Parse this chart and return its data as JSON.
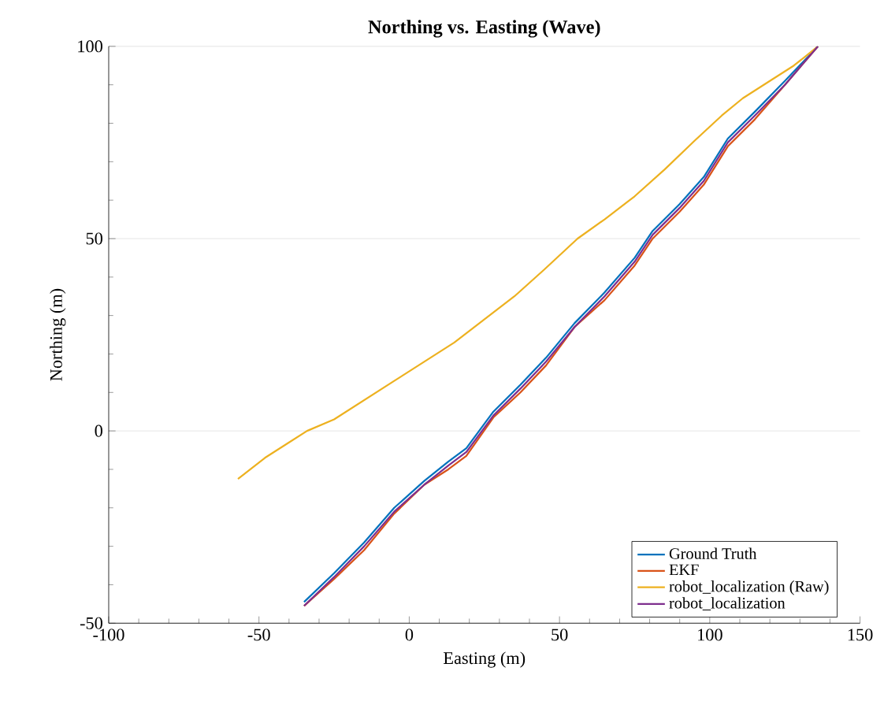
{
  "chart_data": {
    "type": "line",
    "title": "Northing vs. Easting (Wave)",
    "xlabel": "Easting (m)",
    "ylabel": "Northing (m)",
    "xlim": [
      -100,
      150
    ],
    "xticks": [
      -100,
      -50,
      0,
      50,
      100,
      150
    ],
    "ylim": [
      -50,
      100
    ],
    "yticks": [
      -50,
      0,
      50,
      100
    ],
    "grid": "y",
    "legend": "bottom right",
    "line_style": "solid",
    "marker": "none",
    "series": [
      {
        "name": "Ground Truth",
        "color": "#0072bd",
        "x": [
          -35,
          -25,
          -15,
          -5,
          5,
          13,
          19,
          28,
          37,
          45.5,
          55,
          65,
          75,
          81,
          90,
          98,
          106,
          115,
          125,
          136
        ],
        "values": [
          -44.5,
          -37,
          -29,
          -20,
          -13,
          -8,
          -4.5,
          5,
          12,
          19,
          28,
          36,
          45,
          52,
          59,
          66,
          76,
          83,
          91,
          100
        ]
      },
      {
        "name": "EKF",
        "color": "#d95319",
        "x": [
          -35,
          -25,
          -15,
          -5,
          5,
          13,
          19,
          28,
          37,
          45.5,
          55,
          65,
          75,
          81,
          90,
          98,
          106,
          115,
          125,
          136
        ],
        "values": [
          -45.5,
          -38.5,
          -31,
          -21.5,
          -14,
          -10,
          -6.5,
          3.5,
          10,
          17,
          27,
          34,
          43,
          50,
          57,
          64,
          74,
          81,
          90,
          100
        ]
      },
      {
        "name": "robot_localization (Raw)",
        "color": "#edb120",
        "x": [
          -57,
          -48,
          -40,
          -34,
          -25,
          -15,
          -5,
          7,
          15,
          25,
          35,
          45,
          56,
          65,
          75,
          85,
          95,
          104,
          111,
          120,
          128,
          136
        ],
        "values": [
          -12.5,
          -7,
          -3,
          0,
          3,
          8,
          13,
          19,
          23,
          29,
          35,
          42,
          50,
          55,
          61,
          68,
          75.5,
          82,
          86.5,
          91,
          95,
          100
        ]
      },
      {
        "name": "robot_localization",
        "color": "#7e2f8e",
        "x": [
          -35,
          -25,
          -15,
          -5,
          5,
          13,
          19,
          28,
          37,
          45.5,
          55,
          65,
          75,
          81,
          90,
          98,
          106,
          115,
          125,
          136
        ],
        "values": [
          -45.5,
          -38,
          -30,
          -21,
          -14,
          -9,
          -5.5,
          4,
          11,
          18,
          27,
          35,
          44,
          51,
          58,
          65,
          75,
          82,
          90,
          100
        ]
      }
    ]
  }
}
